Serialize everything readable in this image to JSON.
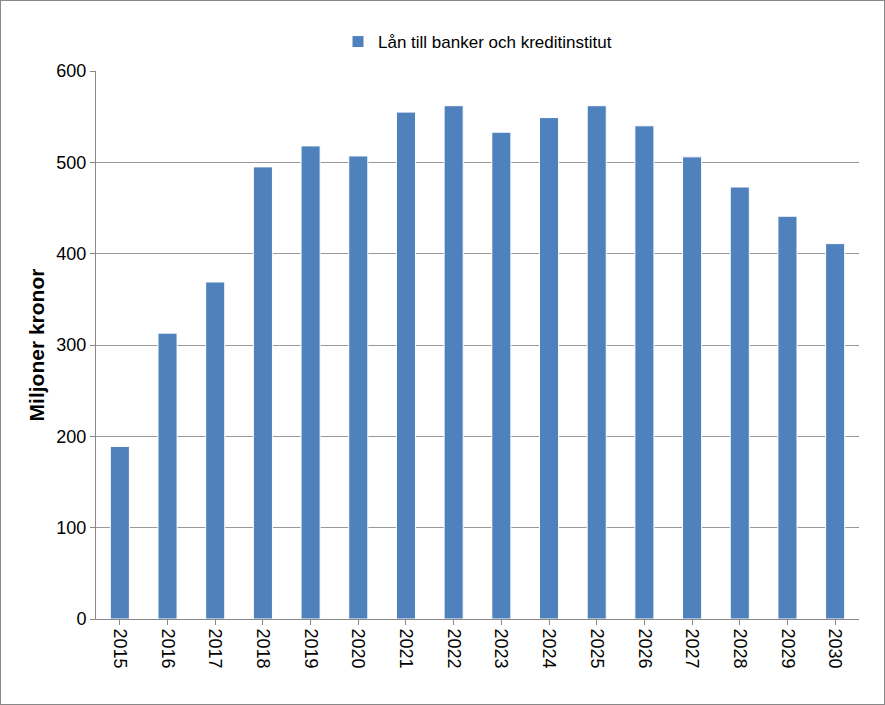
{
  "chart_data": {
    "type": "bar",
    "y_label": "Miljoner kronor",
    "categories": [
      "2015",
      "2016",
      "2017",
      "2018",
      "2019",
      "2020",
      "2021",
      "2022",
      "2023",
      "2024",
      "2025",
      "2026",
      "2027",
      "2028",
      "2029",
      "2030"
    ],
    "series": [
      {
        "name": "Lån till banker och kreditinstitut",
        "color": "#4f81bd",
        "values": [
          189,
          313,
          369,
          495,
          518,
          507,
          555,
          562,
          533,
          549,
          562,
          540,
          506,
          473,
          441,
          411
        ]
      }
    ],
    "ylim": [
      0,
      600
    ],
    "yticks": [
      0,
      100,
      200,
      300,
      400,
      500,
      600
    ],
    "grid": true,
    "legend": "top"
  }
}
